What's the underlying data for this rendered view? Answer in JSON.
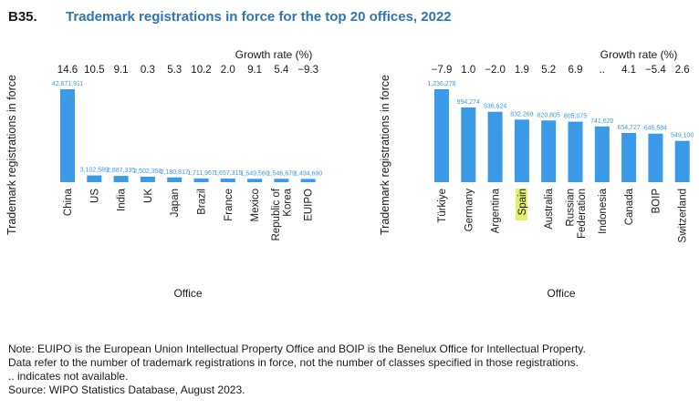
{
  "figure": {
    "id": "B35.",
    "title": "Trademark registrations in force for the top 20 offices, 2022"
  },
  "colors": {
    "bar": "#3a9ae8",
    "value_label": "#3a9ae8",
    "title": "#2e75b6",
    "highlight": "#e3ef6a"
  },
  "chart_data": [
    {
      "type": "bar",
      "ylabel": "Trademark registrations in force",
      "xlabel": "Office",
      "growth_label": "Growth rate (%)",
      "grid": false,
      "categories": [
        "China",
        "US",
        "India",
        "UK",
        "Japan",
        "Brazil",
        "France",
        "Mexico",
        "Republic of Korea",
        "EUIPO"
      ],
      "values": [
        42671911,
        3102589,
        2887335,
        2502358,
        2180817,
        1711967,
        1657315,
        1549560,
        1546679,
        1494690
      ],
      "value_labels": [
        "42,671,911",
        "3,102,589",
        "2,887,335",
        "2,502,358",
        "2,180,817",
        "1,711,967",
        "1,657,315",
        "1,549,560",
        "1,546,679",
        "1,494,690"
      ],
      "growth": [
        "14.6",
        "10.5",
        "9.1",
        "0.3",
        "5.3",
        "10.2",
        "2.0",
        "9.1",
        "5.4",
        "−9.3"
      ],
      "highlight": []
    },
    {
      "type": "bar",
      "ylabel": "Trademark registrations in force",
      "xlabel": "Office",
      "growth_label": "Growth rate (%)",
      "grid": false,
      "categories": [
        "Türkiye",
        "Germany",
        "Argentina",
        "Spain",
        "Australia",
        "Russian Federation",
        "Indonesia",
        "Canada",
        "BOIP",
        "Switzerland"
      ],
      "values": [
        1236278,
        994274,
        936624,
        832268,
        820805,
        805075,
        741620,
        654727,
        645584,
        549100
      ],
      "value_labels": [
        "1,236,278",
        "994,274",
        "936,624",
        "832,268",
        "820,805",
        "805,075",
        "741,620",
        "654,727",
        "645,584",
        "549,100"
      ],
      "growth": [
        "−7.9",
        "1.0",
        "−2.0",
        "1.9",
        "5.2",
        "6.9",
        "..",
        "4.1",
        "−5.4",
        "2.6"
      ],
      "highlight": [
        "Spain"
      ]
    }
  ],
  "notes": [
    "Note: EUIPO is the European Union Intellectual Property Office and BOIP is the Benelux Office for Intellectual Property.",
    "Data refer to the number of trademark registrations in force, not the number of classes specified in those registrations.",
    ".. indicates not available.",
    "Source: WIPO Statistics Database, August 2023."
  ]
}
